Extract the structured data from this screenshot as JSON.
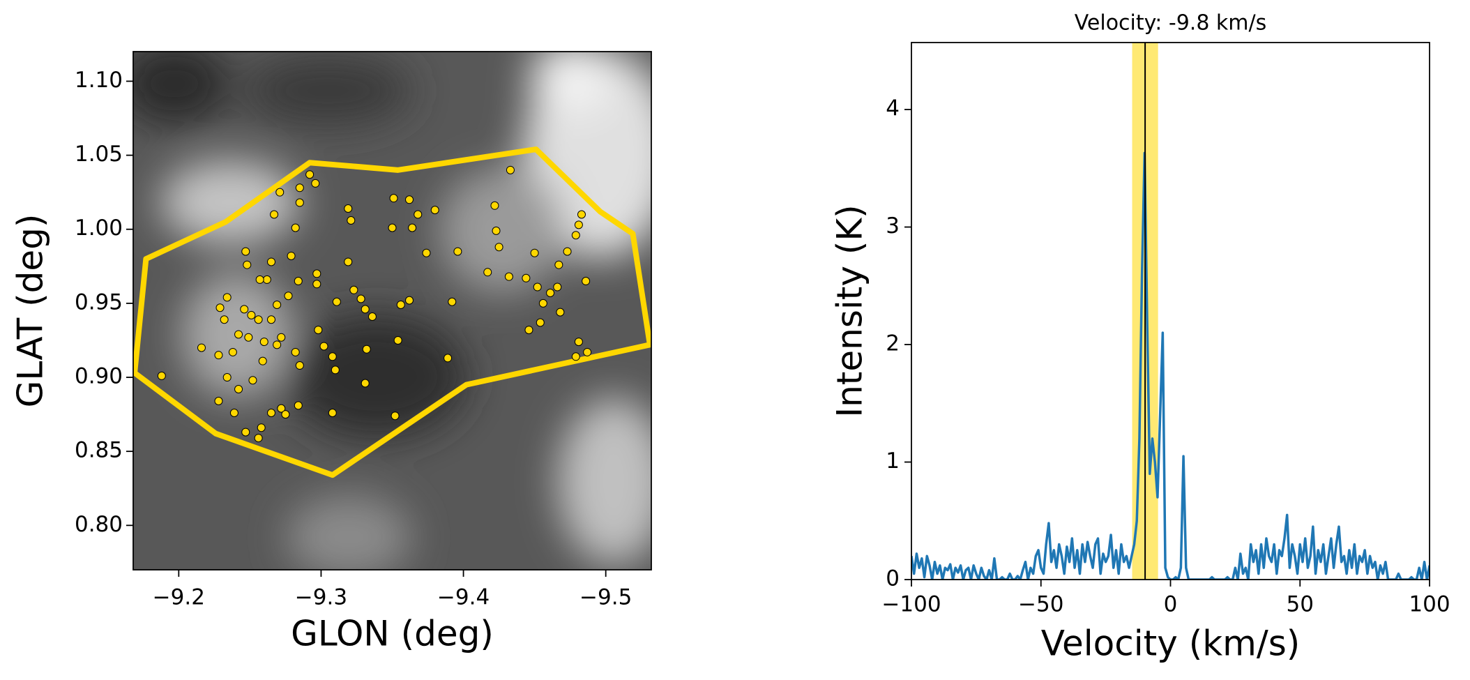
{
  "chart_data": [
    {
      "type": "scatter",
      "xlabel": "GLON (deg)",
      "ylabel": "GLAT (deg)",
      "xlim": [
        -9.168,
        -9.532
      ],
      "ylim": [
        0.77,
        1.12
      ],
      "xticks": [
        {
          "value": -9.2,
          "label": "−9.2"
        },
        {
          "value": -9.3,
          "label": "−9.3"
        },
        {
          "value": -9.4,
          "label": "−9.4"
        },
        {
          "value": -9.5,
          "label": "−9.5"
        }
      ],
      "yticks": [
        {
          "value": 0.8,
          "label": "0.80"
        },
        {
          "value": 0.85,
          "label": "0.85"
        },
        {
          "value": 0.9,
          "label": "0.90"
        },
        {
          "value": 0.95,
          "label": "0.95"
        },
        {
          "value": 1.0,
          "label": "1.00"
        },
        {
          "value": 1.05,
          "label": "1.05"
        },
        {
          "value": 1.1,
          "label": "1.10"
        }
      ],
      "polygon": {
        "color": "#ffd700",
        "x": [
          -9.177,
          -9.233,
          -9.292,
          -9.354,
          -9.451,
          -9.496,
          -9.519,
          -9.531,
          -9.402,
          -9.308,
          -9.226,
          -9.169
        ],
        "y": [
          0.98,
          1.005,
          1.045,
          1.04,
          1.054,
          1.012,
          0.997,
          0.922,
          0.895,
          0.834,
          0.862,
          0.903
        ]
      },
      "points": {
        "color": "#ffd700",
        "x": [
          -9.188,
          -9.216,
          -9.228,
          -9.228,
          -9.234,
          -9.239,
          -9.242,
          -9.247,
          -9.256,
          -9.258,
          -9.252,
          -9.259,
          -9.265,
          -9.272,
          -9.275,
          -9.284,
          -9.285,
          -9.282,
          -9.272,
          -9.265,
          -9.256,
          -9.249,
          -9.242,
          -9.238,
          -9.232,
          -9.229,
          -9.234,
          -9.246,
          -9.251,
          -9.26,
          -9.269,
          -9.269,
          -9.277,
          -9.284,
          -9.262,
          -9.265,
          -9.247,
          -9.248,
          -9.257,
          -9.279,
          -9.297,
          -9.297,
          -9.298,
          -9.302,
          -9.308,
          -9.31,
          -9.308,
          -9.311,
          -9.319,
          -9.323,
          -9.328,
          -9.331,
          -9.336,
          -9.331,
          -9.332,
          -9.351,
          -9.362,
          -9.368,
          -9.38,
          -9.374,
          -9.356,
          -9.362,
          -9.352,
          -9.354,
          -9.389,
          -9.392,
          -9.396,
          -9.422,
          -9.423,
          -9.425,
          -9.417,
          -9.432,
          -9.433,
          -9.444,
          -9.446,
          -9.454,
          -9.456,
          -9.452,
          -9.45,
          -9.461,
          -9.466,
          -9.468,
          -9.473,
          -9.483,
          -9.481,
          -9.479,
          -9.486,
          -9.479,
          -9.481,
          -9.487,
          -9.467,
          -9.364,
          -9.35,
          -9.292,
          -9.296,
          -9.319,
          -9.321,
          -9.271,
          -9.285,
          -9.285,
          -9.282,
          -9.267
        ],
        "y": [
          0.901,
          0.92,
          0.915,
          0.884,
          0.9,
          0.876,
          0.892,
          0.863,
          0.859,
          0.866,
          0.898,
          0.911,
          0.876,
          0.879,
          0.875,
          0.881,
          0.908,
          0.917,
          0.927,
          0.939,
          0.939,
          0.927,
          0.929,
          0.917,
          0.939,
          0.947,
          0.954,
          0.946,
          0.942,
          0.924,
          0.922,
          0.949,
          0.955,
          0.965,
          0.966,
          0.978,
          0.985,
          0.976,
          0.966,
          0.982,
          0.97,
          0.963,
          0.932,
          0.921,
          0.914,
          0.905,
          0.876,
          0.951,
          0.978,
          0.959,
          0.953,
          0.946,
          0.941,
          0.896,
          0.919,
          1.021,
          1.02,
          1.01,
          1.013,
          0.984,
          0.949,
          0.952,
          0.874,
          0.925,
          0.913,
          0.951,
          0.985,
          1.016,
          0.999,
          0.988,
          0.971,
          0.968,
          1.04,
          0.967,
          0.932,
          0.937,
          0.95,
          0.961,
          0.984,
          0.957,
          0.961,
          0.944,
          0.985,
          1.01,
          1.003,
          0.996,
          0.965,
          0.914,
          0.924,
          0.917,
          0.976,
          1.001,
          1.001,
          1.037,
          1.031,
          1.014,
          1.006,
          1.025,
          1.018,
          1.028,
          1.001,
          1.01
        ]
      }
    },
    {
      "type": "line",
      "title": "Velocity: -9.8 km/s",
      "xlabel": "Velocity (km/s)",
      "ylabel": "Intensity (K)",
      "xlim": [
        -100,
        100
      ],
      "ylim": [
        0,
        4.57
      ],
      "xticks": [
        {
          "value": -100,
          "label": "−100"
        },
        {
          "value": -50,
          "label": "−50"
        },
        0,
        50,
        100
      ],
      "yticks": [
        0,
        1,
        2,
        3,
        4
      ],
      "vline": -9.8,
      "band": [
        -14.8,
        -4.8
      ],
      "band_color": "#ffd700",
      "vline_color": "#000000",
      "series": [
        {
          "color": "#1f77b4",
          "x": [
            -100,
            -99,
            -98,
            -97,
            -96,
            -95,
            -94,
            -93,
            -92,
            -91,
            -90,
            -89,
            -88,
            -87,
            -86,
            -85,
            -84,
            -83,
            -82,
            -81,
            -80,
            -79,
            -78,
            -77,
            -76,
            -75,
            -74,
            -73,
            -72,
            -71,
            -70,
            -69,
            -68,
            -67,
            -66,
            -65,
            -64,
            -63,
            -62,
            -61,
            -60,
            -59,
            -58,
            -57,
            -56,
            -55,
            -54,
            -53,
            -52,
            -51,
            -50,
            -49,
            -48,
            -47,
            -46,
            -45,
            -44,
            -43,
            -42,
            -41,
            -40,
            -39,
            -38,
            -37,
            -36,
            -35,
            -34,
            -33,
            -32,
            -31,
            -30,
            -29,
            -28,
            -27,
            -26,
            -25,
            -24,
            -23,
            -22,
            -21,
            -20,
            -19,
            -18,
            -17,
            -16,
            -15,
            -14,
            -13,
            -12,
            -11,
            -10,
            -9,
            -8,
            -7,
            -6,
            -5,
            -4,
            -3,
            -2,
            -1,
            0,
            1,
            2,
            3,
            4,
            5,
            6,
            7,
            8,
            9,
            10,
            11,
            12,
            13,
            14,
            15,
            16,
            17,
            18,
            19,
            20,
            21,
            22,
            23,
            24,
            25,
            26,
            27,
            28,
            29,
            30,
            31,
            32,
            33,
            34,
            35,
            36,
            37,
            38,
            39,
            40,
            41,
            42,
            43,
            44,
            45,
            46,
            47,
            48,
            49,
            50,
            51,
            52,
            53,
            54,
            55,
            56,
            57,
            58,
            59,
            60,
            61,
            62,
            63,
            64,
            65,
            66,
            67,
            68,
            69,
            70,
            71,
            72,
            73,
            74,
            75,
            76,
            77,
            78,
            79,
            80,
            81,
            82,
            83,
            84,
            85,
            86,
            87,
            88,
            89,
            90,
            91,
            92,
            93,
            94,
            95,
            96,
            97,
            98,
            99,
            100
          ],
          "values": [
            0.2,
            0.05,
            0.22,
            0.1,
            0.18,
            0.02,
            0.2,
            0.12,
            0.0,
            0.15,
            0.05,
            0.12,
            0.0,
            0.1,
            0.08,
            0.13,
            0.0,
            0.1,
            0.06,
            0.12,
            0.0,
            0.08,
            0.1,
            0.0,
            0.12,
            0.05,
            0.0,
            0.1,
            0.03,
            0.0,
            0.08,
            0.0,
            0.18,
            0.0,
            0.0,
            0.02,
            0.0,
            0.0,
            0.05,
            0.0,
            0.0,
            0.03,
            0.0,
            0.08,
            0.15,
            0.0,
            0.1,
            0.05,
            0.2,
            0.25,
            0.1,
            0.05,
            0.3,
            0.48,
            0.15,
            0.25,
            0.1,
            0.3,
            0.2,
            0.05,
            0.28,
            0.15,
            0.35,
            0.1,
            0.25,
            0.05,
            0.3,
            0.15,
            0.32,
            0.2,
            0.1,
            0.3,
            0.35,
            0.05,
            0.22,
            0.15,
            0.2,
            0.38,
            0.1,
            0.25,
            0.05,
            0.3,
            0.15,
            0.2,
            0.1,
            0.2,
            0.3,
            0.5,
            1.2,
            2.6,
            3.63,
            2.2,
            0.9,
            1.2,
            1.0,
            0.7,
            1.4,
            2.1,
            0.1,
            0.02,
            0.0,
            0.0,
            0.02,
            0.0,
            0.1,
            1.05,
            0.1,
            0.0,
            0.0,
            0.0,
            0.0,
            0.0,
            0.0,
            0.0,
            0.0,
            0.0,
            0.02,
            0.0,
            0.0,
            0.0,
            0.0,
            0.0,
            0.02,
            0.0,
            0.0,
            0.1,
            0.0,
            0.22,
            0.05,
            0.1,
            0.0,
            0.3,
            0.15,
            0.25,
            0.05,
            0.3,
            0.1,
            0.35,
            0.2,
            0.15,
            0.3,
            0.05,
            0.25,
            0.2,
            0.35,
            0.55,
            0.1,
            0.3,
            0.2,
            0.05,
            0.3,
            0.15,
            0.35,
            0.1,
            0.2,
            0.45,
            0.05,
            0.25,
            0.15,
            0.3,
            0.05,
            0.2,
            0.35,
            0.1,
            0.3,
            0.45,
            0.15,
            0.2,
            0.05,
            0.25,
            0.1,
            0.3,
            0.05,
            0.2,
            0.15,
            0.25,
            0.05,
            0.2,
            0.1,
            0.15,
            0.0,
            0.12,
            0.05,
            0.15,
            0.0,
            0.0,
            0.0,
            0.0,
            0.05,
            0.0,
            0.0,
            0.0,
            0.0,
            0.02,
            0.0,
            0.0,
            0.1,
            0.0,
            0.15,
            0.0,
            0.12
          ]
        }
      ]
    }
  ]
}
